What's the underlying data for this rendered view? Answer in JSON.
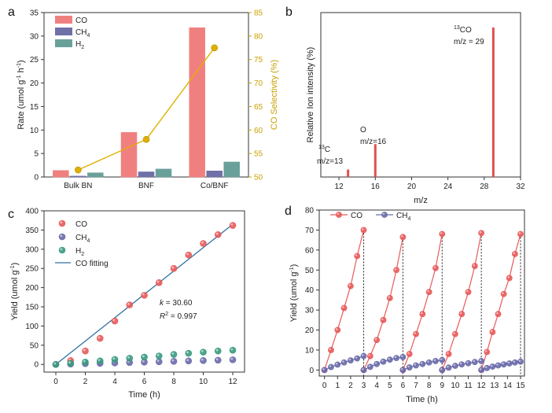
{
  "chart_data": [
    {
      "panel": "a",
      "type": "bar",
      "categories": [
        "Bulk BN",
        "BNF",
        "Co/BNF"
      ],
      "ylabel": "Rate (umol g-1 h-1)",
      "ylabel_parts": [
        "Rate (umol g",
        "-1",
        " h",
        "-1",
        ")"
      ],
      "ylim": [
        0,
        35
      ],
      "yticks": [
        0,
        5,
        10,
        15,
        20,
        25,
        30,
        35
      ],
      "series": [
        {
          "name": "CO",
          "label": "CO",
          "sub": "",
          "color": "#f08080",
          "values": [
            1.4,
            9.5,
            31.8
          ]
        },
        {
          "name": "CH4",
          "label": "CH",
          "sub": "4",
          "color": "#7070a8",
          "values": [
            0.2,
            1.1,
            1.3
          ]
        },
        {
          "name": "H2",
          "label": "H",
          "sub": "2",
          "color": "#6aa09a",
          "values": [
            0.9,
            1.7,
            3.2
          ]
        }
      ],
      "y2label": "CO Selectivity (%)",
      "y2lim": [
        50,
        85
      ],
      "y2ticks": [
        50,
        55,
        60,
        65,
        70,
        75,
        80,
        85
      ],
      "selectivity": [
        51.5,
        58.0,
        77.5
      ],
      "selectivity_color": "#e0b000"
    },
    {
      "panel": "b",
      "type": "bar",
      "xlabel": "m/z",
      "ylabel": "Relative Ion intensity (%)",
      "xlim": [
        10,
        32
      ],
      "xticks": [
        12,
        16,
        20,
        24,
        28,
        32
      ],
      "peaks": [
        {
          "x": 13,
          "value": 0.05,
          "pre": "13",
          "name": "C",
          "mz": "m/z=13"
        },
        {
          "x": 16,
          "value": 0.22,
          "pre": "",
          "name": "O",
          "mz": "m/z=16"
        },
        {
          "x": 29,
          "value": 1.0,
          "pre": "13",
          "name": "CO",
          "mz": "m/z = 29"
        }
      ],
      "color": "#e05050"
    },
    {
      "panel": "c",
      "type": "scatter",
      "xlabel": "Time (h)",
      "ylabel": "Yield (umol g-1)",
      "ylabel_parts": [
        "Yield (umol g",
        "-1",
        ")"
      ],
      "xlim": [
        -0.8,
        12.8
      ],
      "ylim": [
        -20,
        400
      ],
      "xticks": [
        0,
        2,
        4,
        6,
        8,
        10,
        12
      ],
      "yticks": [
        0,
        50,
        100,
        150,
        200,
        250,
        300,
        350,
        400
      ],
      "x": [
        0,
        1,
        2,
        3,
        4,
        5,
        6,
        7,
        8,
        9,
        10,
        11,
        12
      ],
      "series": [
        {
          "name": "CO",
          "label": "CO",
          "sub": "",
          "color": "#e85a5a",
          "values": [
            0,
            10,
            35,
            68,
            113,
            155,
            180,
            213,
            250,
            285,
            315,
            338,
            362
          ]
        },
        {
          "name": "CH4",
          "label": "CH",
          "sub": "4",
          "color": "#6a6aaa",
          "values": [
            0,
            1,
            2,
            3,
            4,
            5,
            6,
            7,
            8,
            9,
            10,
            11,
            12
          ]
        },
        {
          "name": "H2",
          "label": "H",
          "sub": "2",
          "color": "#3a9a80",
          "values": [
            0,
            3,
            6,
            9,
            13,
            16,
            19,
            22,
            26,
            29,
            32,
            35,
            37
          ]
        }
      ],
      "fit": {
        "name": "CO fitting",
        "x": [
          0,
          12
        ],
        "y": [
          0,
          365
        ],
        "color": "#3070a0"
      },
      "annotation": {
        "k": "k",
        "k_value": " = 30.60",
        "r": "R",
        "r_sup": "2",
        "r_value": " = 0.997"
      }
    },
    {
      "panel": "d",
      "type": "line",
      "xlabel": "Time (h)",
      "ylabel": "Yield (umol g-1)",
      "ylabel_parts": [
        "Yield (umol g",
        "-1",
        ")"
      ],
      "xlim": [
        -0.4,
        15.3
      ],
      "ylim": [
        -3,
        80
      ],
      "xticks": [
        0,
        1,
        2,
        3,
        4,
        5,
        6,
        7,
        8,
        9,
        10,
        11,
        12,
        13,
        14,
        15
      ],
      "yticks": [
        0,
        10,
        20,
        30,
        40,
        50,
        60,
        70,
        80
      ],
      "cycle_ends": [
        3,
        6,
        9,
        12,
        15
      ],
      "series": [
        {
          "name": "CO",
          "label": "CO",
          "sub": "",
          "color": "#e85a5a",
          "cycles": [
            [
              0,
              10,
              20,
              31,
              42,
              57,
              70
            ],
            [
              0,
              7,
              15,
              25,
              36,
              50,
              66.5
            ],
            [
              0,
              8,
              18,
              28,
              39,
              51,
              68
            ],
            [
              0,
              8,
              18,
              28,
              39,
              52,
              68.5
            ],
            [
              0,
              9,
              19,
              28,
              38,
              46,
              58,
              68
            ]
          ]
        },
        {
          "name": "CH4",
          "label": "CH",
          "sub": "4",
          "color": "#6a6aaa",
          "cycles": [
            [
              0,
              1.5,
              2.7,
              3.8,
              4.8,
              5.8,
              7
            ],
            [
              0,
              1.6,
              3.0,
              4.2,
              5.2,
              6.0,
              6.5
            ],
            [
              0,
              1.3,
              2.3,
              3.0,
              3.8,
              4.5,
              5.0
            ],
            [
              0,
              1.2,
              2.1,
              2.8,
              3.4,
              4.0,
              4.5
            ],
            [
              0,
              1.0,
              1.7,
              2.3,
              2.8,
              3.3,
              3.8,
              4.2
            ]
          ]
        }
      ]
    }
  ]
}
